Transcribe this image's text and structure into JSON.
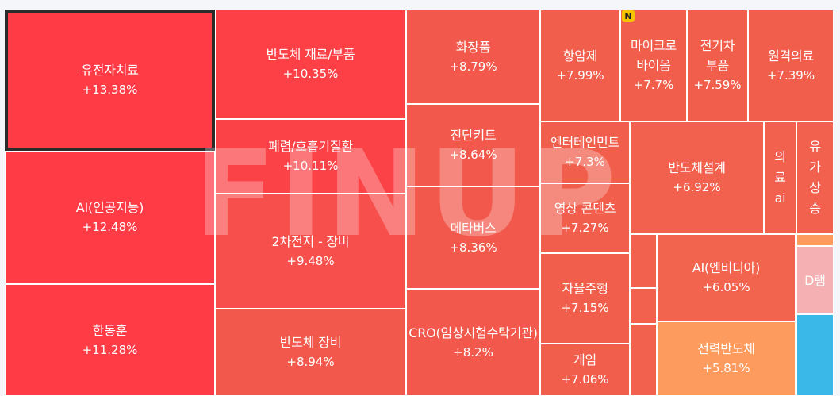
{
  "watermark": "FINUP",
  "badge": "N",
  "chart_data": {
    "type": "treemap",
    "unit": "%",
    "items": [
      {
        "label": "유전자치료",
        "value": "+13.38%",
        "pct": 13.38,
        "color": "#ff3b46",
        "selected": true
      },
      {
        "label": "AI(인공지능)",
        "value": "+12.48%",
        "pct": 12.48,
        "color": "#ff3b46"
      },
      {
        "label": "한동훈",
        "value": "+11.28%",
        "pct": 11.28,
        "color": "#ff3b46"
      },
      {
        "label": "반도체 재료/부품",
        "value": "+10.35%",
        "pct": 10.35,
        "color": "#fc4045"
      },
      {
        "label": "폐렴/호흡기질환",
        "value": "+10.11%",
        "pct": 10.11,
        "color": "#fb4247"
      },
      {
        "label": "2차전지 - 장비",
        "value": "+9.48%",
        "pct": 9.48,
        "color": "#f74f4c"
      },
      {
        "label": "반도체 장비",
        "value": "+8.94%",
        "pct": 8.94,
        "color": "#f3584c"
      },
      {
        "label": "화장품",
        "value": "+8.79%",
        "pct": 8.79,
        "color": "#f2594c"
      },
      {
        "label": "진단키트",
        "value": "+8.64%",
        "pct": 8.64,
        "color": "#f2594c"
      },
      {
        "label": "메타버스",
        "value": "+8.36%",
        "pct": 8.36,
        "color": "#f2594c"
      },
      {
        "label": "CRO(임상시험수탁기관)",
        "value": "+8.2%",
        "pct": 8.2,
        "color": "#f2594c"
      },
      {
        "label": "항암제",
        "value": "+7.99%",
        "pct": 7.99,
        "color": "#f25e4c"
      },
      {
        "label": "마이크로\n바이옴",
        "value": "+7.7%",
        "pct": 7.7,
        "color": "#f25e4c"
      },
      {
        "label": "전기차\n부품",
        "value": "+7.59%",
        "pct": 7.59,
        "color": "#f25e4c"
      },
      {
        "label": "원격의료",
        "value": "+7.39%",
        "pct": 7.39,
        "color": "#f25e4c"
      },
      {
        "label": "엔터테인먼트",
        "value": "+7.3%",
        "pct": 7.3,
        "color": "#f25e4c"
      },
      {
        "label": "영상 콘텐츠",
        "value": "+7.27%",
        "pct": 7.27,
        "color": "#f25e4c"
      },
      {
        "label": "자율주행",
        "value": "+7.15%",
        "pct": 7.15,
        "color": "#f25e4c"
      },
      {
        "label": "게임",
        "value": "+7.06%",
        "pct": 7.06,
        "color": "#f25e4c"
      },
      {
        "label": "반도체설계",
        "value": "+6.92%",
        "pct": 6.92,
        "color": "#f2604e"
      },
      {
        "label": "의료ai",
        "value": "",
        "pct": null,
        "color": "#f2604e",
        "vertical": true
      },
      {
        "label": "유가상승",
        "value": "",
        "pct": null,
        "color": "#f2604e",
        "vertical": true
      },
      {
        "label": "AI(엔비디아)",
        "value": "+6.05%",
        "pct": 6.05,
        "color": "#f3644e"
      },
      {
        "label": "전력반도체",
        "value": "+5.81%",
        "pct": 5.81,
        "color": "#fd9a5d"
      },
      {
        "label": "D램",
        "value": "",
        "pct": null,
        "color": "#f5b0b3"
      },
      {
        "label": "",
        "value": "",
        "pct": null,
        "color": "#f2604e"
      },
      {
        "label": "",
        "value": "",
        "pct": null,
        "color": "#f2604e"
      },
      {
        "label": "",
        "value": "",
        "pct": null,
        "color": "#f2604e"
      },
      {
        "label": "",
        "value": "",
        "pct": null,
        "color": "#f2604e"
      },
      {
        "label": "",
        "value": "",
        "pct": null,
        "color": "#fd9a5d"
      },
      {
        "label": "",
        "value": "",
        "pct": null,
        "color": "#3ab8e8"
      }
    ]
  }
}
